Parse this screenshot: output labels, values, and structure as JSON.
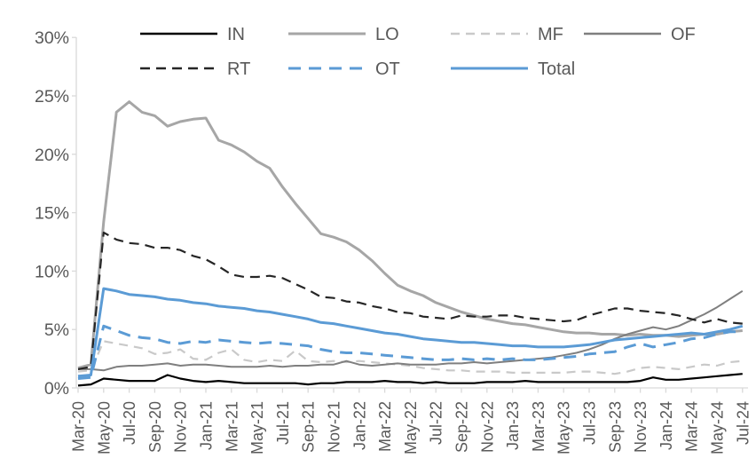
{
  "label_color": "#595959",
  "axis_color": "#d9d9d9",
  "chart_data": {
    "type": "line",
    "title": "",
    "xlabel": "",
    "ylabel": "",
    "ylim": [
      0,
      30
    ],
    "grid": false,
    "legend_position": "top",
    "y_tick_labels": [
      "0%",
      "5%",
      "10%",
      "15%",
      "20%",
      "25%",
      "30%"
    ],
    "x_tick_labels": [
      "Mar-20",
      "May-20",
      "Jul-20",
      "Sep-20",
      "Nov-20",
      "Jan-21",
      "Mar-21",
      "May-21",
      "Jul-21",
      "Sep-21",
      "Nov-21",
      "Jan-22",
      "Mar-22",
      "May-22",
      "Jul-22",
      "Sep-22",
      "Nov-22",
      "Jan-23",
      "Mar-23",
      "May-23",
      "Jul-23",
      "Sep-23",
      "Nov-23",
      "Jan-24",
      "Mar-24",
      "May-24",
      "Jul-24"
    ],
    "months": [
      "Mar-20",
      "Apr-20",
      "May-20",
      "Jun-20",
      "Jul-20",
      "Aug-20",
      "Sep-20",
      "Oct-20",
      "Nov-20",
      "Dec-20",
      "Jan-21",
      "Feb-21",
      "Mar-21",
      "Apr-21",
      "May-21",
      "Jun-21",
      "Jul-21",
      "Aug-21",
      "Sep-21",
      "Oct-21",
      "Nov-21",
      "Dec-21",
      "Jan-22",
      "Feb-22",
      "Mar-22",
      "Apr-22",
      "May-22",
      "Jun-22",
      "Jul-22",
      "Aug-22",
      "Sep-22",
      "Oct-22",
      "Nov-22",
      "Dec-22",
      "Jan-23",
      "Feb-23",
      "Mar-23",
      "Apr-23",
      "May-23",
      "Jun-23",
      "Jul-23",
      "Aug-23",
      "Sep-23",
      "Oct-23",
      "Nov-23",
      "Dec-23",
      "Jan-24",
      "Feb-24",
      "Mar-24",
      "Apr-24",
      "May-24",
      "Jun-24",
      "Jul-24"
    ],
    "legend_rows": [
      [
        "IN",
        "LO",
        "MF",
        "OF"
      ],
      [
        "RT",
        "OT",
        "Total"
      ]
    ],
    "series": [
      {
        "name": "IN",
        "color": "#000000",
        "dash": null,
        "width": 2.2,
        "values": [
          0.2,
          0.3,
          0.8,
          0.7,
          0.6,
          0.6,
          0.6,
          1.1,
          0.8,
          0.6,
          0.5,
          0.6,
          0.5,
          0.4,
          0.4,
          0.4,
          0.4,
          0.4,
          0.3,
          0.4,
          0.4,
          0.5,
          0.5,
          0.5,
          0.6,
          0.5,
          0.5,
          0.4,
          0.5,
          0.4,
          0.4,
          0.4,
          0.5,
          0.5,
          0.5,
          0.6,
          0.5,
          0.5,
          0.5,
          0.5,
          0.5,
          0.5,
          0.5,
          0.5,
          0.6,
          0.9,
          0.7,
          0.7,
          0.8,
          0.9,
          1.0,
          1.1,
          1.2
        ]
      },
      {
        "name": "LO",
        "color": "#a6a6a6",
        "dash": null,
        "width": 3,
        "values": [
          1.7,
          2.0,
          14.2,
          23.6,
          24.5,
          23.6,
          23.3,
          22.4,
          22.8,
          23.0,
          23.1,
          21.2,
          20.8,
          20.2,
          19.4,
          18.8,
          17.2,
          15.8,
          14.5,
          13.2,
          12.9,
          12.5,
          11.8,
          10.9,
          9.8,
          8.8,
          8.3,
          7.9,
          7.3,
          6.9,
          6.5,
          6.2,
          5.9,
          5.7,
          5.5,
          5.4,
          5.2,
          5.0,
          4.8,
          4.7,
          4.7,
          4.6,
          4.6,
          4.5,
          4.6,
          4.5,
          4.5,
          4.4,
          4.5,
          4.6,
          4.6,
          4.8,
          4.9
        ]
      },
      {
        "name": "MF",
        "color": "#c9c9c9",
        "dash": "10,7",
        "width": 2.2,
        "values": [
          1.4,
          1.5,
          4.0,
          3.8,
          3.6,
          3.4,
          2.9,
          3.0,
          3.3,
          2.5,
          2.4,
          3.0,
          3.3,
          2.4,
          2.2,
          2.4,
          2.3,
          3.2,
          2.3,
          2.2,
          2.3,
          2.2,
          2.3,
          2.2,
          2.1,
          2.0,
          1.9,
          1.7,
          1.6,
          1.5,
          1.5,
          1.4,
          1.4,
          1.4,
          1.3,
          1.3,
          1.3,
          1.3,
          1.3,
          1.4,
          1.4,
          1.3,
          1.2,
          1.4,
          1.7,
          1.8,
          1.7,
          1.6,
          1.8,
          2.0,
          1.9,
          2.2,
          2.3
        ]
      },
      {
        "name": "OF",
        "color": "#7f7f7f",
        "dash": null,
        "width": 2,
        "values": [
          1.6,
          1.6,
          1.5,
          1.8,
          1.9,
          1.9,
          2.0,
          2.1,
          1.9,
          2.0,
          2.0,
          1.9,
          1.8,
          1.8,
          1.8,
          1.9,
          1.8,
          1.9,
          1.9,
          2.0,
          2.0,
          2.3,
          2.0,
          1.9,
          2.0,
          2.1,
          2.0,
          2.0,
          2.0,
          2.1,
          2.1,
          2.2,
          2.1,
          2.2,
          2.3,
          2.4,
          2.5,
          2.6,
          2.8,
          3.0,
          3.3,
          3.7,
          4.2,
          4.6,
          4.9,
          5.2,
          5.0,
          5.3,
          5.8,
          6.3,
          6.9,
          7.6,
          8.3
        ]
      },
      {
        "name": "RT",
        "color": "#262626",
        "dash": "11,7",
        "width": 2.2,
        "values": [
          1.6,
          1.8,
          13.3,
          12.7,
          12.4,
          12.3,
          12.0,
          12.0,
          11.8,
          11.3,
          11.0,
          10.4,
          9.7,
          9.5,
          9.5,
          9.6,
          9.4,
          8.9,
          8.4,
          7.8,
          7.7,
          7.4,
          7.3,
          7.0,
          6.8,
          6.5,
          6.4,
          6.1,
          6.0,
          5.9,
          6.2,
          6.1,
          6.1,
          6.2,
          6.2,
          6.0,
          5.9,
          5.8,
          5.7,
          5.8,
          6.2,
          6.5,
          6.8,
          6.8,
          6.6,
          6.5,
          6.4,
          6.2,
          5.9,
          5.6,
          5.9,
          5.6,
          5.5
        ]
      },
      {
        "name": "OT",
        "color": "#5b9bd5",
        "dash": "14,9",
        "width": 3,
        "values": [
          0.8,
          0.9,
          5.3,
          4.9,
          4.5,
          4.3,
          4.2,
          3.9,
          3.8,
          4.0,
          3.9,
          4.1,
          4.0,
          3.9,
          3.8,
          3.9,
          3.8,
          3.7,
          3.6,
          3.3,
          3.1,
          3.0,
          3.0,
          2.9,
          2.8,
          2.7,
          2.6,
          2.5,
          2.4,
          2.4,
          2.5,
          2.4,
          2.5,
          2.4,
          2.5,
          2.4,
          2.4,
          2.5,
          2.6,
          2.7,
          2.9,
          3.0,
          3.1,
          3.5,
          3.8,
          3.5,
          3.7,
          3.9,
          4.2,
          4.3,
          4.6,
          4.8,
          4.8
        ]
      },
      {
        "name": "Total",
        "color": "#5b9bd5",
        "dash": null,
        "width": 3,
        "values": [
          1.0,
          1.1,
          8.5,
          8.3,
          8.0,
          7.9,
          7.8,
          7.6,
          7.5,
          7.3,
          7.2,
          7.0,
          6.9,
          6.8,
          6.6,
          6.5,
          6.3,
          6.1,
          5.9,
          5.6,
          5.5,
          5.3,
          5.1,
          4.9,
          4.7,
          4.6,
          4.4,
          4.2,
          4.1,
          4.0,
          3.9,
          3.9,
          3.8,
          3.7,
          3.6,
          3.6,
          3.5,
          3.5,
          3.5,
          3.6,
          3.7,
          3.9,
          4.1,
          4.2,
          4.3,
          4.4,
          4.5,
          4.6,
          4.7,
          4.6,
          4.8,
          5.0,
          5.3
        ]
      }
    ]
  }
}
